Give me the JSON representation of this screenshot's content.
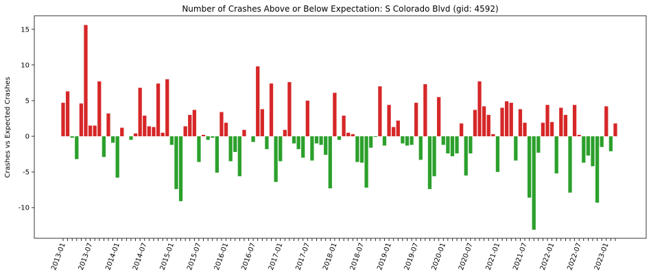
{
  "chart_data": {
    "type": "bar",
    "title": "Number of Crashes Above or Below Expectation: S Colorado Blvd (gid: 4592)",
    "ylabel": "Crashes vs Expected Crashes",
    "categories": [
      "2013-01",
      null,
      null,
      null,
      null,
      null,
      "2013-07",
      null,
      null,
      null,
      null,
      null,
      "2014-01",
      null,
      null,
      null,
      null,
      null,
      "2014-07",
      null,
      null,
      null,
      null,
      null,
      "2015-01",
      null,
      null,
      null,
      null,
      null,
      "2015-07",
      null,
      null,
      null,
      null,
      null,
      "2016-01",
      null,
      null,
      null,
      null,
      null,
      "2016-07",
      null,
      null,
      null,
      null,
      null,
      "2017-01",
      null,
      null,
      null,
      null,
      null,
      "2017-07",
      null,
      null,
      null,
      null,
      null,
      "2018-01",
      null,
      null,
      null,
      null,
      null,
      "2018-07",
      null,
      null,
      null,
      null,
      null,
      "2019-01",
      null,
      null,
      null,
      null,
      null,
      "2019-07",
      null,
      null,
      null,
      null,
      null,
      "2020-01",
      null,
      null,
      null,
      null,
      null,
      "2020-07",
      null,
      null,
      null,
      null,
      null,
      "2021-01",
      null,
      null,
      null,
      null,
      null,
      "2021-07",
      null,
      null,
      null,
      null,
      null,
      "2022-01",
      null,
      null,
      null,
      null,
      null,
      "2022-07",
      null,
      null,
      null,
      null,
      null,
      "2023-01",
      null,
      null
    ],
    "values": [
      4.7,
      6.3,
      -0.2,
      -3.2,
      4.6,
      15.6,
      1.5,
      1.5,
      7.7,
      -2.9,
      3.2,
      -0.9,
      -5.8,
      1.2,
      0,
      -0.5,
      0.4,
      6.8,
      2.9,
      1.4,
      1.3,
      7.4,
      0.5,
      8.0,
      -1.2,
      -7.4,
      -9.1,
      1.4,
      3.0,
      3.7,
      -3.6,
      0.2,
      -0.5,
      -0.2,
      -5.1,
      3.4,
      1.9,
      -3.5,
      -2.2,
      -5.6,
      0.9,
      0,
      -0.8,
      9.8,
      3.8,
      -1.8,
      7.4,
      -6.4,
      -3.5,
      0.9,
      7.6,
      -1.0,
      -1.8,
      -3.0,
      5.0,
      -3.4,
      -1.0,
      -1.2,
      -2.6,
      -7.3,
      6.1,
      -0.5,
      2.9,
      0.5,
      0.3,
      -3.6,
      -3.7,
      -7.2,
      -1.6,
      -0.1,
      7.0,
      -1.3,
      4.4,
      1.3,
      2.2,
      -1.0,
      -1.3,
      -1.2,
      4.7,
      -3.3,
      7.3,
      -7.4,
      -5.6,
      5.5,
      -1.2,
      -2.4,
      -2.8,
      -2.4,
      1.8,
      -5.5,
      -2.4,
      3.7,
      7.7,
      4.2,
      3.0,
      0.3,
      -5.0,
      4.0,
      4.9,
      4.7,
      -3.4,
      3.8,
      1.9,
      -8.6,
      -13.1,
      -2.3,
      1.9,
      4.4,
      2.0,
      -5.2,
      4.0,
      3.0,
      -7.9,
      4.4,
      0.2,
      -3.7,
      -2.7,
      -4.2,
      -9.3,
      -1.5,
      4.2,
      -2.1,
      1.8
    ],
    "positive_color": "#d62728",
    "negative_color": "#2ca02c",
    "ylim": [
      -14.3,
      16.9
    ],
    "yticks": [
      -10,
      -5,
      0,
      5,
      10,
      15
    ],
    "grid": false
  }
}
